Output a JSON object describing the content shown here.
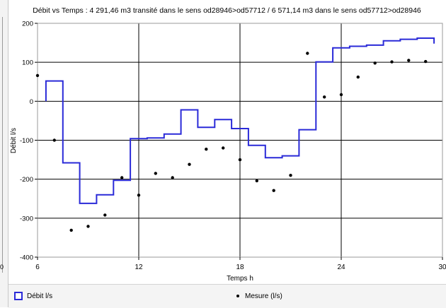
{
  "chart_data": {
    "type": "line",
    "title": "Débit vs Temps : 4 291,46 m3 transité dans le sens od28946>od57712  /  6 571,14 m3 dans le sens od57712>od28946",
    "xlabel": "Temps h",
    "ylabel": "Débit l/s",
    "xlim": [
      6,
      30
    ],
    "ylim": [
      -400,
      200
    ],
    "x_ticks": [
      6,
      12,
      18,
      24,
      30
    ],
    "y_ticks": [
      200,
      100,
      0,
      -100,
      -200,
      -300,
      -400
    ],
    "grid": true,
    "legend_position": "bottom",
    "series": [
      {
        "name": "Débit l/s",
        "kind": "step",
        "color": "#2a2ad8",
        "points": [
          [
            6.5,
            0
          ],
          [
            6.5,
            52
          ],
          [
            7.5,
            52
          ],
          [
            7.5,
            -158
          ],
          [
            8.5,
            -158
          ],
          [
            8.5,
            -262
          ],
          [
            9.5,
            -262
          ],
          [
            9.5,
            -240
          ],
          [
            10.5,
            -240
          ],
          [
            10.5,
            -203
          ],
          [
            11.5,
            -203
          ],
          [
            11.5,
            -96
          ],
          [
            12.5,
            -96
          ],
          [
            12.5,
            -94
          ],
          [
            13.5,
            -94
          ],
          [
            13.5,
            -84
          ],
          [
            14.5,
            -84
          ],
          [
            14.5,
            -22
          ],
          [
            15.5,
            -22
          ],
          [
            15.5,
            -67
          ],
          [
            16.5,
            -67
          ],
          [
            16.5,
            -47
          ],
          [
            17.5,
            -47
          ],
          [
            17.5,
            -70
          ],
          [
            18.5,
            -70
          ],
          [
            18.5,
            -113
          ],
          [
            19.5,
            -113
          ],
          [
            19.5,
            -145
          ],
          [
            20.5,
            -145
          ],
          [
            20.5,
            -140
          ],
          [
            21.5,
            -140
          ],
          [
            21.5,
            -73
          ],
          [
            22.5,
            -73
          ],
          [
            22.5,
            101
          ],
          [
            23.5,
            101
          ],
          [
            23.5,
            137
          ],
          [
            24.5,
            137
          ],
          [
            24.5,
            141
          ],
          [
            25.5,
            141
          ],
          [
            25.5,
            144
          ],
          [
            26.5,
            144
          ],
          [
            26.5,
            155
          ],
          [
            27.5,
            155
          ],
          [
            27.5,
            159
          ],
          [
            28.5,
            159
          ],
          [
            28.5,
            162
          ],
          [
            29.5,
            162
          ],
          [
            29.5,
            148
          ]
        ]
      },
      {
        "name": "Mesure (l/s)",
        "kind": "scatter",
        "color": "#000000",
        "points": [
          [
            6.0,
            66
          ],
          [
            7.0,
            -100
          ],
          [
            8.0,
            -331
          ],
          [
            9.0,
            -321
          ],
          [
            10.0,
            -292
          ],
          [
            11.0,
            -196
          ],
          [
            12.0,
            -241
          ],
          [
            13.0,
            -185
          ],
          [
            14.0,
            -196
          ],
          [
            15.0,
            -162
          ],
          [
            16.0,
            -123
          ],
          [
            17.0,
            -120
          ],
          [
            18.0,
            -150
          ],
          [
            19.0,
            -204
          ],
          [
            20.0,
            -229
          ],
          [
            21.0,
            -190
          ],
          [
            22.0,
            123
          ],
          [
            23.0,
            11
          ],
          [
            24.0,
            17
          ],
          [
            25.0,
            62
          ],
          [
            26.0,
            98
          ],
          [
            27.0,
            101
          ],
          [
            28.0,
            105
          ],
          [
            29.0,
            102
          ]
        ]
      }
    ]
  },
  "left_panel": {
    "cut_label": "0"
  }
}
